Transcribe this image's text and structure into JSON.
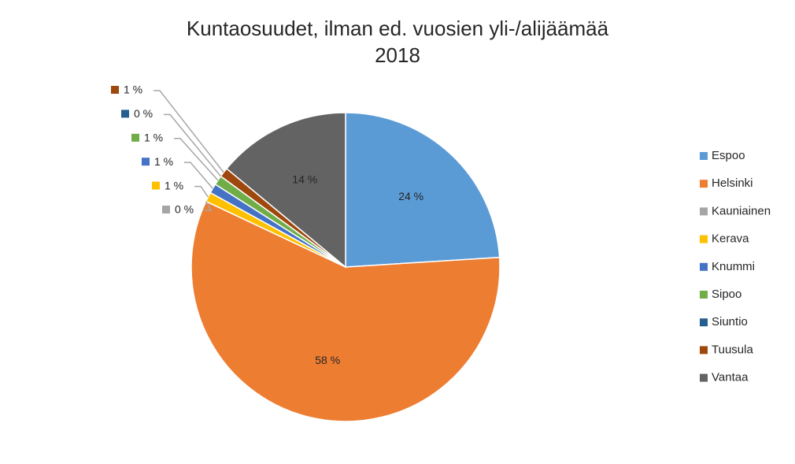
{
  "chart_data": {
    "type": "pie",
    "title": "Kuntaosuudet, ilman ed. vuosien yli-/alijäämää",
    "subtitle": "2018",
    "categories": [
      "Espoo",
      "Helsinki",
      "Kauniainen",
      "Kerava",
      "Knummi",
      "Sipoo",
      "Siuntio",
      "Tuusula",
      "Vantaa"
    ],
    "values": [
      24,
      58,
      0,
      1,
      1,
      1,
      0,
      1,
      14
    ],
    "value_labels": [
      "24 %",
      "58 %",
      "0 %",
      "1 %",
      "1 %",
      "1 %",
      "0 %",
      "1 %",
      "14 %"
    ],
    "colors": [
      "#5b9bd5",
      "#ed7d31",
      "#a5a5a5",
      "#ffc000",
      "#4472c4",
      "#70ad47",
      "#255e91",
      "#9e480e",
      "#636363"
    ],
    "legend": "right"
  }
}
